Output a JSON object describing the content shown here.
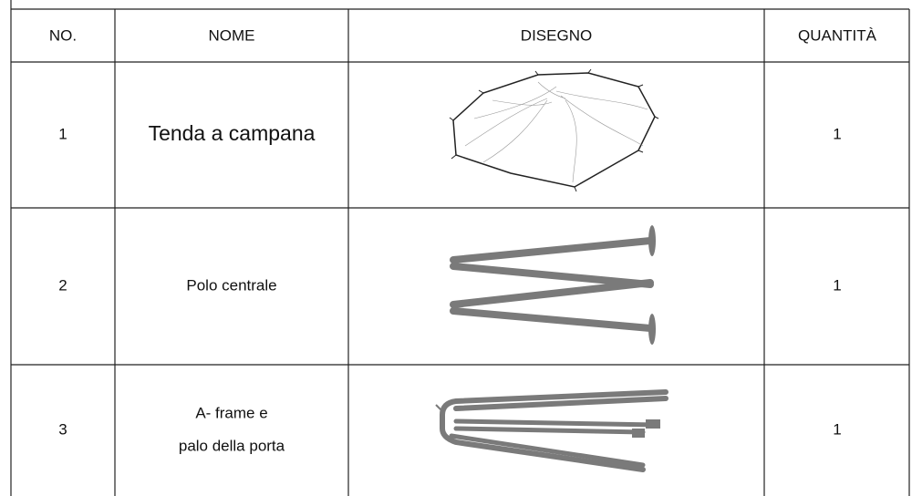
{
  "table": {
    "header": [
      "NO.",
      "NOME",
      "DISEGNO",
      "QUANTITÀ"
    ],
    "rows": [
      {
        "no": "1",
        "name": [
          "Tenda a campana"
        ],
        "quantity": "1"
      },
      {
        "no": "2",
        "name": [
          "Polo centrale"
        ],
        "quantity": "1"
      },
      {
        "no": "3",
        "name": [
          "A- frame e",
          "palo della porta"
        ],
        "quantity": "1"
      }
    ]
  }
}
